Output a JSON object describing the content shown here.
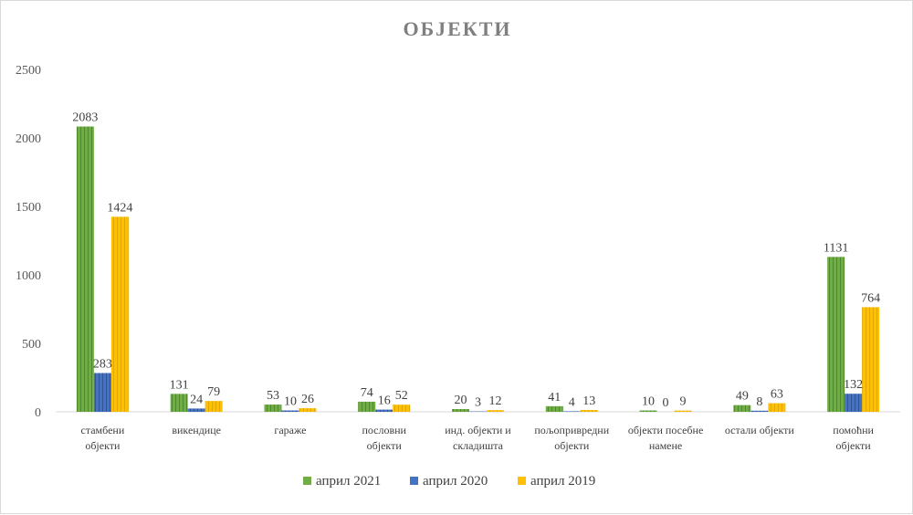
{
  "chart_data": {
    "type": "bar",
    "title": "ОБЈЕКТИ",
    "xlabel": "",
    "ylabel": "",
    "ylim": [
      0,
      2500
    ],
    "yticks": [
      0,
      500,
      1000,
      1500,
      2000,
      2500
    ],
    "grid": false,
    "legend_position": "bottom",
    "categories": [
      [
        "стамбени",
        "објекти"
      ],
      [
        "викендице"
      ],
      [
        "гараже"
      ],
      [
        "пословни",
        "објекти"
      ],
      [
        "инд. објекти и",
        "складишта"
      ],
      [
        "пољопривредни",
        "објекти"
      ],
      [
        "објекти посебне",
        "намене"
      ],
      [
        "остали објекти"
      ],
      [
        "помоћни",
        "објекти"
      ]
    ],
    "series": [
      {
        "name": "април 2021",
        "color": "#70ad47",
        "stripe": "#4e8a2a",
        "values": [
          2083,
          131,
          53,
          74,
          20,
          41,
          10,
          49,
          1131
        ]
      },
      {
        "name": "април 2020",
        "color": "#4472c4",
        "stripe": "#2f5597",
        "values": [
          283,
          24,
          10,
          16,
          3,
          4,
          0,
          8,
          132
        ]
      },
      {
        "name": "април 2019",
        "color": "#ffc000",
        "stripe": "#e0a800",
        "values": [
          1424,
          79,
          26,
          52,
          12,
          13,
          9,
          63,
          764
        ]
      }
    ]
  }
}
